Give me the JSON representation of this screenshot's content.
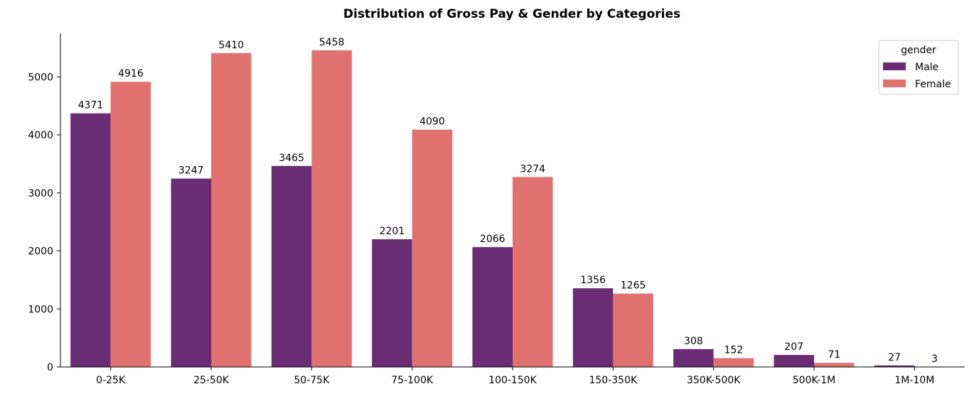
{
  "chart_data": {
    "type": "bar",
    "title": "Distribution of Gross Pay & Gender by Categories",
    "xlabel": "",
    "ylabel": "",
    "categories": [
      "0-25K",
      "25-50K",
      "50-75K",
      "75-100K",
      "100-150K",
      "150-350K",
      "350K-500K",
      "500K-1M",
      "1M-10M"
    ],
    "series": [
      {
        "name": "Male",
        "color": "#6a2c74",
        "values": [
          4371,
          3247,
          3465,
          2201,
          2066,
          1356,
          308,
          207,
          27
        ]
      },
      {
        "name": "Female",
        "color": "#e0716e",
        "values": [
          4916,
          5410,
          5458,
          4090,
          3274,
          1265,
          152,
          71,
          3
        ]
      }
    ],
    "ylim": [
      0,
      5750
    ],
    "yticks": [
      0,
      1000,
      2000,
      3000,
      4000,
      5000
    ],
    "grid": false,
    "legend": {
      "title": "gender",
      "placement": "top-right"
    }
  }
}
